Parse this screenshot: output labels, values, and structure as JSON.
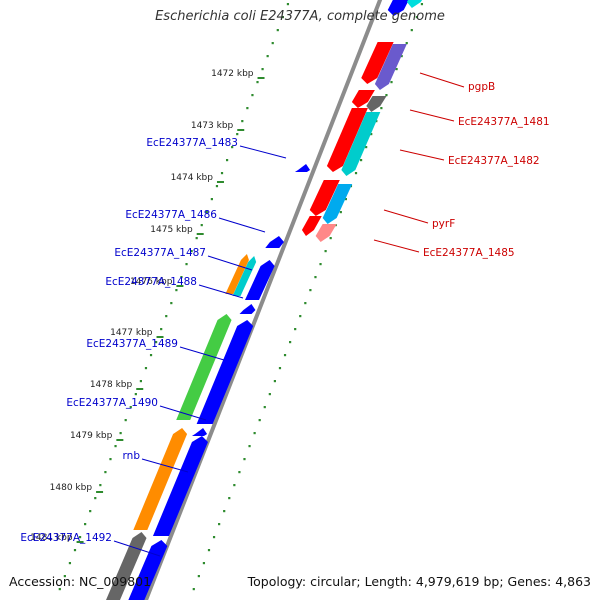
{
  "title": "Escherichia coli E24377A, complete genome",
  "footer": {
    "accession": "Accession: NC_009801",
    "topology": "Topology: circular; Length: 4,979,619 bp; Genes: 4,863"
  },
  "colors": {
    "backbone": "#8c8c8c",
    "ticks": "#2e8b2e",
    "label_reverse": "#0000cc",
    "label_forward": "#cc0000"
  },
  "kbp_ticks": [
    "1472 kbp",
    "1473 kbp",
    "1474 kbp",
    "1475 kbp",
    "1476 kbp",
    "1477 kbp",
    "1478 kbp",
    "1479 kbp",
    "1480 kbp",
    "1481 kbp"
  ],
  "genes_forward": [
    {
      "label": "pgpB",
      "color": "#ff0000"
    },
    {
      "label": "EcE24377A_1481",
      "color": "#666666"
    },
    {
      "label": "EcE24377A_1482",
      "color": "#00cccc"
    },
    {
      "label": "pyrF",
      "color": "#00aaee"
    },
    {
      "label": "EcE24377A_1485",
      "color": "#ff8888"
    }
  ],
  "genes_reverse": [
    {
      "label": "EcE24377A_1483",
      "color": "#0000ff"
    },
    {
      "label": "EcE24377A_1486",
      "color": "#0000ff"
    },
    {
      "label": "EcE24377A_1487",
      "color": "#ff8c00"
    },
    {
      "label": "EcE24377A_1488",
      "color": "#00cccc"
    },
    {
      "label": "EcE24377A_1489",
      "color": "#44cc44"
    },
    {
      "label": "EcE24377A_1490",
      "color": "#0000ff"
    },
    {
      "label": "rnb",
      "color": "#ff8c00"
    },
    {
      "label": "EcE24377A_1492",
      "color": "#666666"
    }
  ]
}
